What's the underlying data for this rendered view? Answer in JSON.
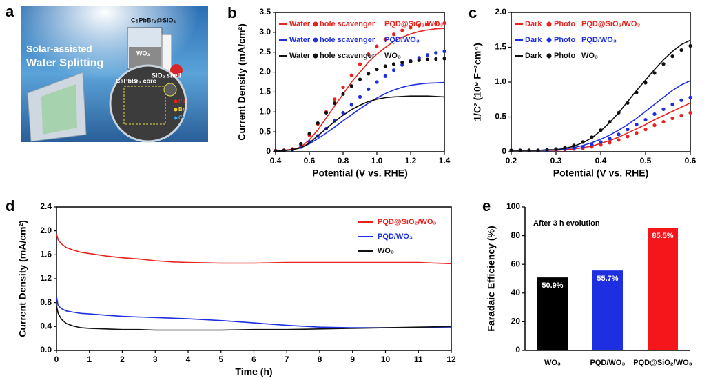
{
  "panel_a": {
    "label": "a",
    "heading1": "Solar-assisted",
    "heading2": "Water Splitting",
    "composite": "CsPbBr₃@SiO₂",
    "electrode": "WO₃",
    "core": "CsPbBr₃ core",
    "shell": "SiO₂ shell",
    "atoms": [
      "Pb",
      "Br",
      "Cs"
    ]
  },
  "chart_data": [
    {
      "type": "line",
      "label": "b",
      "xlabel": "Potential (V vs. RHE)",
      "ylabel": "Current Density (mA/cm²)",
      "x": [
        0.4,
        0.45,
        0.5,
        0.55,
        0.6,
        0.65,
        0.7,
        0.75,
        0.8,
        0.85,
        0.9,
        0.95,
        1.0,
        1.05,
        1.1,
        1.15,
        1.2,
        1.25,
        1.3,
        1.35,
        1.4
      ],
      "xlim": [
        0.4,
        1.4
      ],
      "xticks": [
        0.4,
        0.6,
        0.8,
        {
          "value": 1,
          "label": "1.0"
        },
        1.2,
        1.4
      ],
      "ylim": [
        0,
        3.5
      ],
      "yticks": [
        0,
        0.5,
        {
          "value": 1,
          "label": "1.0"
        },
        1.5,
        {
          "value": 2,
          "label": "2.0"
        },
        2.5,
        {
          "value": 3,
          "label": "3.0"
        },
        3.5
      ],
      "frame": true,
      "series": [
        {
          "name": "PQD@SiO₂/WO₃",
          "color": "#e8231f",
          "lines": {
            "label": "Water",
            "values": [
              0.03,
              0.04,
              0.06,
              0.12,
              0.3,
              0.55,
              0.85,
              1.15,
              1.45,
              1.75,
              2.0,
              2.25,
              2.45,
              2.62,
              2.77,
              2.88,
              2.96,
              3.02,
              3.06,
              3.09,
              3.1
            ]
          },
          "dots": {
            "label": "hole scavenger",
            "values": [
              0.03,
              0.04,
              0.07,
              0.18,
              0.42,
              0.7,
              1.0,
              1.32,
              1.62,
              1.92,
              2.2,
              2.45,
              2.65,
              2.82,
              2.95,
              3.05,
              3.12,
              3.17,
              3.2,
              3.22,
              3.23
            ]
          }
        },
        {
          "name": "PQD/WO₃",
          "color": "#1d2fe0",
          "lines": {
            "label": "Water",
            "values": [
              0.02,
              0.03,
              0.05,
              0.1,
              0.2,
              0.33,
              0.47,
              0.62,
              0.78,
              0.93,
              1.08,
              1.22,
              1.35,
              1.46,
              1.55,
              1.62,
              1.67,
              1.7,
              1.72,
              1.73,
              1.74
            ]
          },
          "dots": {
            "label": "hole scavenger",
            "values": [
              0.02,
              0.03,
              0.05,
              0.12,
              0.25,
              0.4,
              0.58,
              0.78,
              0.98,
              1.18,
              1.38,
              1.57,
              1.75,
              1.9,
              2.05,
              2.18,
              2.28,
              2.36,
              2.43,
              2.48,
              2.52
            ]
          }
        },
        {
          "name": "WO₃",
          "color": "#111111",
          "lines": {
            "label": "Water",
            "values": [
              0.02,
              0.03,
              0.05,
              0.1,
              0.22,
              0.4,
              0.58,
              0.76,
              0.92,
              1.06,
              1.17,
              1.26,
              1.32,
              1.36,
              1.38,
              1.39,
              1.4,
              1.4,
              1.4,
              1.39,
              1.38
            ]
          },
          "dots": {
            "label": "hole scavenger",
            "values": [
              0.02,
              0.03,
              0.06,
              0.2,
              0.45,
              0.72,
              0.98,
              1.22,
              1.45,
              1.65,
              1.82,
              1.96,
              2.07,
              2.15,
              2.2,
              2.24,
              2.27,
              2.3,
              2.32,
              2.33,
              2.34
            ]
          }
        }
      ]
    },
    {
      "type": "line",
      "label": "c",
      "xlabel": "Potential (V vs. RHE)",
      "ylabel": "1/C² (10⁹ F⁻²cm⁴)",
      "x": [
        0.2,
        0.22,
        0.24,
        0.26,
        0.28,
        0.3,
        0.32,
        0.34,
        0.36,
        0.38,
        0.4,
        0.42,
        0.44,
        0.46,
        0.48,
        0.5,
        0.52,
        0.54,
        0.56,
        0.58,
        0.6
      ],
      "xlim": [
        0.2,
        0.6
      ],
      "xticks": [
        0.2,
        0.3,
        0.4,
        0.5,
        0.6
      ],
      "ylim": [
        0,
        2
      ],
      "yticks": [
        0,
        0.5,
        {
          "value": 1,
          "label": "1.0"
        },
        1.5,
        {
          "value": 2,
          "label": "2.0"
        }
      ],
      "frame": true,
      "series": [
        {
          "name": "PQD@SiO₂/WO₃",
          "color": "#e8231f",
          "lines": {
            "label": "Dark",
            "values": [
              0.02,
              0.02,
              0.02,
              0.02,
              0.02,
              0.02,
              0.03,
              0.04,
              0.06,
              0.08,
              0.12,
              0.16,
              0.21,
              0.27,
              0.33,
              0.39,
              0.46,
              0.52,
              0.58,
              0.64,
              0.7
            ]
          },
          "dots": {
            "label": "Photo",
            "values": [
              0.02,
              0.02,
              0.02,
              0.02,
              0.02,
              0.02,
              0.03,
              0.04,
              0.05,
              0.07,
              0.1,
              0.13,
              0.17,
              0.22,
              0.27,
              0.32,
              0.38,
              0.43,
              0.48,
              0.52,
              0.56
            ]
          }
        },
        {
          "name": "PQD/WO₃",
          "color": "#1d2fe0",
          "lines": {
            "label": "Dark",
            "values": [
              0.02,
              0.02,
              0.02,
              0.02,
              0.02,
              0.03,
              0.04,
              0.06,
              0.09,
              0.13,
              0.18,
              0.24,
              0.31,
              0.39,
              0.48,
              0.58,
              0.68,
              0.78,
              0.88,
              0.96,
              1.02
            ]
          },
          "dots": {
            "label": "Photo",
            "values": [
              0.02,
              0.02,
              0.02,
              0.02,
              0.02,
              0.03,
              0.04,
              0.05,
              0.07,
              0.1,
              0.14,
              0.19,
              0.25,
              0.32,
              0.39,
              0.46,
              0.54,
              0.61,
              0.68,
              0.74,
              0.78
            ]
          }
        },
        {
          "name": "WO₃",
          "color": "#111111",
          "lines": {
            "label": "Dark",
            "values": [
              0.02,
              0.02,
              0.02,
              0.02,
              0.03,
              0.03,
              0.05,
              0.08,
              0.13,
              0.2,
              0.3,
              0.42,
              0.56,
              0.72,
              0.88,
              1.03,
              1.18,
              1.32,
              1.44,
              1.54,
              1.6
            ]
          },
          "dots": {
            "label": "Photo",
            "values": [
              0.02,
              0.02,
              0.02,
              0.02,
              0.03,
              0.04,
              0.06,
              0.09,
              0.14,
              0.21,
              0.31,
              0.43,
              0.56,
              0.7,
              0.85,
              0.99,
              1.13,
              1.26,
              1.37,
              1.46,
              1.52
            ]
          }
        }
      ]
    },
    {
      "type": "line",
      "label": "d",
      "xlabel": "Time (h)",
      "ylabel": "Current Density (mA/cm²)",
      "x": [
        0,
        0.05,
        0.15,
        0.3,
        0.5,
        0.75,
        1,
        1.5,
        2,
        2.5,
        3,
        3.5,
        4,
        5,
        6,
        7,
        8,
        9,
        10,
        11,
        12
      ],
      "xlim": [
        0,
        12
      ],
      "xticks": [
        0,
        1,
        2,
        3,
        4,
        5,
        6,
        7,
        8,
        9,
        10,
        11,
        12
      ],
      "ylim": [
        0,
        2.4
      ],
      "yticks": [
        {
          "value": 0,
          "label": "0.0"
        },
        0.4,
        0.8,
        1.2,
        1.6,
        {
          "value": 2,
          "label": "2.0"
        },
        2.4
      ],
      "frame": true,
      "legend": "upper right",
      "series": [
        {
          "name": "PQD@SiO₂/WO₃",
          "color": "#e8231f",
          "values": [
            1.95,
            1.85,
            1.78,
            1.72,
            1.68,
            1.64,
            1.62,
            1.58,
            1.55,
            1.53,
            1.5,
            1.48,
            1.47,
            1.46,
            1.46,
            1.47,
            1.47,
            1.47,
            1.47,
            1.47,
            1.45
          ]
        },
        {
          "name": "PQD/WO₃",
          "color": "#1d2fe0",
          "values": [
            0.9,
            0.75,
            0.7,
            0.66,
            0.64,
            0.62,
            0.61,
            0.59,
            0.57,
            0.56,
            0.55,
            0.54,
            0.53,
            0.5,
            0.46,
            0.42,
            0.39,
            0.38,
            0.38,
            0.38,
            0.38
          ]
        },
        {
          "name": "WO₃",
          "color": "#111111",
          "values": [
            0.75,
            0.62,
            0.52,
            0.45,
            0.41,
            0.38,
            0.37,
            0.36,
            0.35,
            0.35,
            0.34,
            0.34,
            0.34,
            0.34,
            0.35,
            0.35,
            0.36,
            0.37,
            0.38,
            0.39,
            0.4
          ]
        }
      ]
    },
    {
      "type": "bar",
      "label": "e",
      "ylabel": "Faradaic Efficiency (%)",
      "annotation": "After 3 h evolution",
      "categories": [
        "WO₃",
        "PQD/WO₃",
        "PQD@SiO₂/WO₃"
      ],
      "values": [
        50.9,
        55.7,
        85.5
      ],
      "value_labels": [
        "50.9%",
        "55.7%",
        "85.5%"
      ],
      "colors": [
        "#000000",
        "#1d2fe0",
        "#f5161b"
      ],
      "ylim": [
        0,
        100
      ],
      "yticks": [
        0,
        20,
        40,
        60,
        80,
        100
      ],
      "frame": false
    }
  ]
}
